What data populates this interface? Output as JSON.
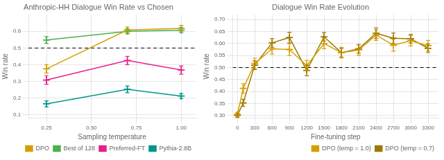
{
  "chart_data": [
    {
      "type": "line",
      "title": "Anthropic-HH Dialogue Win Rate vs Chosen",
      "xlabel": "Sampling temperature",
      "ylabel": "Win rate",
      "xlim": [
        0.15,
        1.08
      ],
      "ylim": [
        0.08,
        0.7
      ],
      "xticks": [
        0.25,
        {
          "value": 0.5,
          "label": "0.50"
        },
        0.75,
        {
          "value": 1.0,
          "label": "1.00"
        }
      ],
      "yticks": [
        0.1,
        0.2,
        0.3,
        0.4,
        0.5,
        0.6
      ],
      "grid": true,
      "legend": "lower right",
      "reference_line": {
        "y": 0.5,
        "line_style": "dashed",
        "color": "black"
      },
      "x": [
        0.25,
        0.7,
        1.0
      ],
      "series": [
        {
          "name": "DPO",
          "color": "#D4A000",
          "marker": "plus",
          "values": [
            0.375,
            0.608,
            0.618
          ],
          "yerr": [
            0.025,
            0.018,
            0.018
          ]
        },
        {
          "name": "Best of 128",
          "color": "#4CAF50",
          "marker": "plus",
          "values": [
            0.548,
            0.6,
            0.607
          ],
          "yerr": [
            0.02,
            0.015,
            0.015
          ]
        },
        {
          "name": "Preferred-FT",
          "color": "#E91E8C",
          "marker": "plus",
          "values": [
            0.308,
            0.425,
            0.368
          ],
          "yerr": [
            0.025,
            0.025,
            0.025
          ]
        },
        {
          "name": "Pythia-2.8B",
          "color": "#009688",
          "marker": "plus",
          "values": [
            0.165,
            0.252,
            0.212
          ],
          "yerr": [
            0.018,
            0.02,
            0.015
          ]
        }
      ]
    },
    {
      "type": "line",
      "title": "Dialogue Win Rate Evolution",
      "xlabel": "Fine-tuning step",
      "ylabel": "Win rate",
      "xlim": [
        -80,
        3480
      ],
      "ylim": [
        0.29,
        0.72
      ],
      "xticks": [
        0,
        300,
        600,
        900,
        1200,
        1500,
        1800,
        2100,
        2400,
        2700,
        3000,
        3300
      ],
      "yticks": [
        {
          "value": 0.3,
          "label": "0.30"
        },
        0.35,
        {
          "value": 0.4,
          "label": "0.40"
        },
        0.45,
        {
          "value": 0.5,
          "label": "0.50"
        },
        0.55,
        {
          "value": 0.6,
          "label": "0.60"
        },
        0.65,
        {
          "value": 0.7,
          "label": "0.70"
        }
      ],
      "grid": true,
      "legend": "lower right",
      "reference_line": {
        "y": 0.5,
        "line_style": "dashed",
        "color": "black"
      },
      "x": [
        0,
        100,
        300,
        600,
        900,
        1200,
        1500,
        1800,
        2100,
        2400,
        2700,
        3000,
        3300
      ],
      "series": [
        {
          "name": "DPO (temp = 1.0)",
          "color": "#D4A000",
          "marker": "plus",
          "values": [
            0.305,
            0.413,
            0.517,
            0.578,
            0.575,
            0.508,
            0.6,
            0.562,
            0.573,
            0.635,
            0.593,
            0.612,
            0.591
          ],
          "yerr": [
            0.008,
            0.02,
            0.022,
            0.022,
            0.025,
            0.022,
            0.022,
            0.022,
            0.022,
            0.022,
            0.025,
            0.022,
            0.022
          ]
        },
        {
          "name": "DPO (temp = 0.7)",
          "color": "#A07800",
          "marker": "plus",
          "values": [
            0.301,
            0.353,
            0.51,
            0.603,
            0.625,
            0.488,
            0.628,
            0.562,
            0.578,
            0.643,
            0.622,
            0.62,
            0.58
          ],
          "yerr": [
            0.008,
            0.015,
            0.018,
            0.018,
            0.022,
            0.022,
            0.018,
            0.018,
            0.018,
            0.022,
            0.022,
            0.018,
            0.018
          ]
        }
      ]
    }
  ]
}
